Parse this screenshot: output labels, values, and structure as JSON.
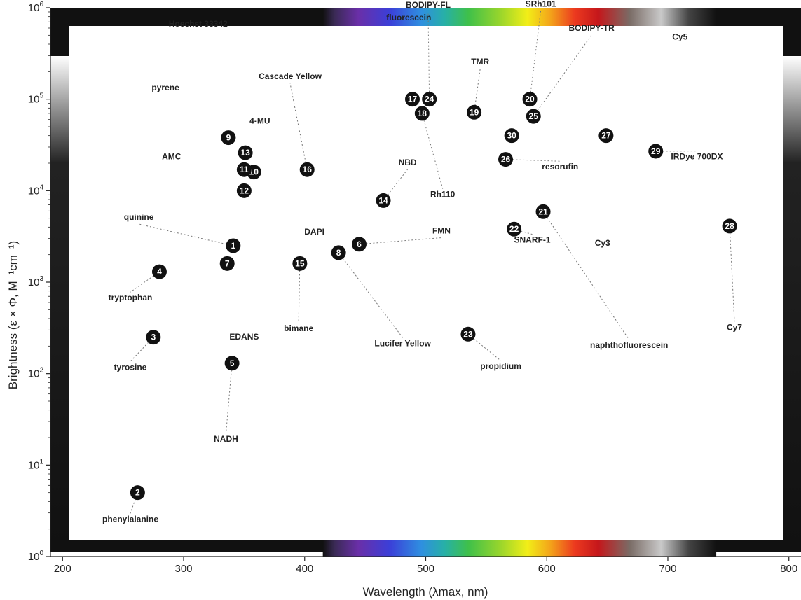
{
  "chart_data": {
    "type": "scatter",
    "xlabel": "Wavelength (λmax, nm)",
    "ylabel": "Brightness (ε × Φ, M⁻¹cm⁻¹)",
    "xlim": [
      190,
      810
    ],
    "ylim": [
      1,
      1000000
    ],
    "y_scale": "log",
    "x_ticks": [
      200,
      300,
      400,
      500,
      600,
      700,
      800
    ],
    "y_ticks": [
      {
        "value": 1,
        "base": "10",
        "exp": "0"
      },
      {
        "value": 10,
        "base": "10",
        "exp": "1"
      },
      {
        "value": 100,
        "base": "10",
        "exp": "2"
      },
      {
        "value": 1000,
        "base": "10",
        "exp": "3"
      },
      {
        "value": 10000,
        "base": "10",
        "exp": "4"
      },
      {
        "value": 100000,
        "base": "10",
        "exp": "5"
      },
      {
        "value": 1000000,
        "base": "10",
        "exp": "6"
      }
    ],
    "grid": false,
    "points": [
      {
        "id": "1",
        "x": 341,
        "y": 2500,
        "name": "quinine",
        "color": "#5a62b8"
      },
      {
        "id": "2",
        "x": 262,
        "y": 5,
        "name": "phenylalanine",
        "color": "#222222"
      },
      {
        "id": "3",
        "x": 275,
        "y": 250,
        "name": "tyrosine",
        "color": "#222222"
      },
      {
        "id": "4",
        "x": 280,
        "y": 1300,
        "name": "tryptophan",
        "color": "#222222"
      },
      {
        "id": "5",
        "x": 340,
        "y": 130,
        "name": "NADH",
        "color": "#7a56b0"
      },
      {
        "id": "6",
        "x": 445,
        "y": 2600,
        "name": "FMN",
        "color": "#57b96b"
      },
      {
        "id": "7",
        "x": 336,
        "y": 1600,
        "name": "",
        "color": "#222222"
      },
      {
        "id": "8",
        "x": 428,
        "y": 2100,
        "name": "Lucifer Yellow",
        "color": "#57b96b"
      },
      {
        "id": "9",
        "x": 337,
        "y": 38000,
        "name": "",
        "color": "#5a62b8"
      },
      {
        "id": "10",
        "x": 358,
        "y": 16000,
        "name": "",
        "color": "#5a62b8"
      },
      {
        "id": "11",
        "x": 350,
        "y": 17000,
        "name": "",
        "color": "#5a62b8"
      },
      {
        "id": "12",
        "x": 350,
        "y": 10000,
        "name": "",
        "color": "#5a62b8"
      },
      {
        "id": "13",
        "x": 351,
        "y": 26000,
        "name": "",
        "color": "#5a62b8"
      },
      {
        "id": "14",
        "x": 465,
        "y": 7800,
        "name": "NBD",
        "color": "#57b96b"
      },
      {
        "id": "15",
        "x": 396,
        "y": 1600,
        "name": "bimane",
        "color": "#4a8fbf"
      },
      {
        "id": "16",
        "x": 402,
        "y": 17000,
        "name": "Cascade Yellow",
        "color": "#8cbf3a"
      },
      {
        "id": "17",
        "x": 489,
        "y": 100000,
        "name": "",
        "color": "#57b96b"
      },
      {
        "id": "18",
        "x": 497,
        "y": 70000,
        "name": "Rh110",
        "color": "#57b96b"
      },
      {
        "id": "19",
        "x": 540,
        "y": 72000,
        "name": "TMR",
        "color": "#a9c23a"
      },
      {
        "id": "20",
        "x": 586,
        "y": 100000,
        "name": "SRh101",
        "color": "#f06e4f"
      },
      {
        "id": "21",
        "x": 597,
        "y": 5900,
        "name": "naphthofluorescein",
        "color": "#c7826a"
      },
      {
        "id": "22",
        "x": 573,
        "y": 3800,
        "name": "SNARF-1",
        "color": "#f06e4f"
      },
      {
        "id": "23",
        "x": 535,
        "y": 270,
        "name": "propidium",
        "color": "#f06e4f"
      },
      {
        "id": "24",
        "x": 503,
        "y": 100000,
        "name": "BODIPY-FL",
        "color": "#57b96b"
      },
      {
        "id": "25",
        "x": 589,
        "y": 65000,
        "name": "BODIPY-TR",
        "color": "#f06e4f"
      },
      {
        "id": "26",
        "x": 566,
        "y": 22000,
        "name": "resorufin",
        "color": "#f0a64a"
      },
      {
        "id": "27",
        "x": 649,
        "y": 40000,
        "name": "",
        "color": "#b8866f"
      },
      {
        "id": "28",
        "x": 751,
        "y": 4100,
        "name": "Cy7",
        "color": "#555555"
      },
      {
        "id": "29",
        "x": 690,
        "y": 27000,
        "name": "IRDye 700DX",
        "color": "#b8866f"
      },
      {
        "id": "30",
        "x": 571,
        "y": 40000,
        "name": "",
        "color": "#f0a64a"
      }
    ],
    "labels": [
      {
        "text": "Hoechst 33342",
        "x": 312,
        "y": 620000
      },
      {
        "text": "fluorescein",
        "x": 486,
        "y": 730000
      },
      {
        "text": "BODIPY-FL",
        "x": 502,
        "y": 1000000
      },
      {
        "text": "SRh101",
        "x": 595,
        "y": 1030000
      },
      {
        "text": "BODIPY-TR",
        "x": 637,
        "y": 560000
      },
      {
        "text": "Cy5",
        "x": 710,
        "y": 450000
      },
      {
        "text": "TMR",
        "x": 545,
        "y": 240000
      },
      {
        "text": "Cascade Yellow",
        "x": 388,
        "y": 165000
      },
      {
        "text": "pyrene",
        "x": 285,
        "y": 125000
      },
      {
        "text": "4-MU",
        "x": 363,
        "y": 54000
      },
      {
        "text": "AMC",
        "x": 290,
        "y": 22000
      },
      {
        "text": "NBD",
        "x": 485,
        "y": 19000
      },
      {
        "text": "resorufin",
        "x": 611,
        "y": 17000
      },
      {
        "text": "IRDye 700DX",
        "x": 724,
        "y": 22000
      },
      {
        "text": "Rh110",
        "x": 514,
        "y": 8500
      },
      {
        "text": "quinine",
        "x": 263,
        "y": 4800
      },
      {
        "text": "DAPI",
        "x": 408,
        "y": 3300
      },
      {
        "text": "FMN",
        "x": 513,
        "y": 3400
      },
      {
        "text": "SNARF-1",
        "x": 588,
        "y": 2700
      },
      {
        "text": "Cy3",
        "x": 646,
        "y": 2500
      },
      {
        "text": "tryptophan",
        "x": 256,
        "y": 630
      },
      {
        "text": "bimane",
        "x": 395,
        "y": 290
      },
      {
        "text": "EDANS",
        "x": 350,
        "y": 235
      },
      {
        "text": "Lucifer Yellow",
        "x": 481,
        "y": 200
      },
      {
        "text": "tyrosine",
        "x": 256,
        "y": 110
      },
      {
        "text": "propidium",
        "x": 562,
        "y": 112
      },
      {
        "text": "naphthofluorescein",
        "x": 668,
        "y": 190
      },
      {
        "text": "Cy7",
        "x": 755,
        "y": 300
      },
      {
        "text": "NADH",
        "x": 335,
        "y": 18
      },
      {
        "text": "phenylalanine",
        "x": 256,
        "y": 2.4
      }
    ],
    "spectrum_band": {
      "start": 415,
      "end": 740
    }
  }
}
